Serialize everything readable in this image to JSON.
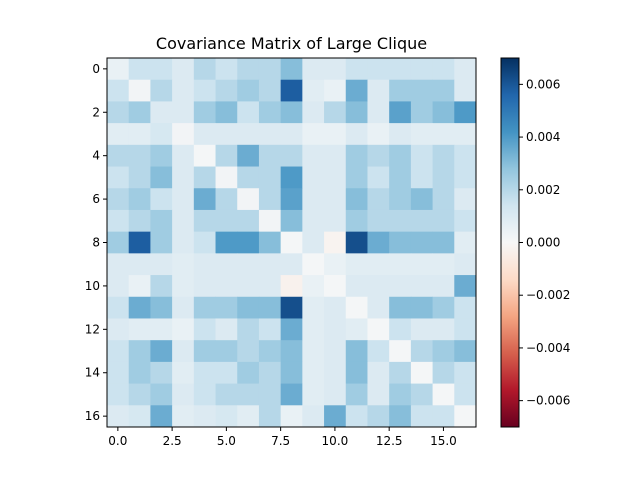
{
  "chart_data": {
    "type": "heatmap",
    "title": "Covariance Matrix of Large Clique",
    "xlabel": "",
    "ylabel": "",
    "x_ticks": [
      "0.0",
      "2.5",
      "5.0",
      "7.5",
      "10.0",
      "12.5",
      "15.0"
    ],
    "x_tick_values": [
      0,
      2.5,
      5,
      7.5,
      10,
      12.5,
      15
    ],
    "y_ticks": [
      "0",
      "2",
      "4",
      "6",
      "8",
      "10",
      "12",
      "14",
      "16"
    ],
    "y_tick_values": [
      0,
      2,
      4,
      6,
      8,
      10,
      12,
      14,
      16
    ],
    "xlim": [
      -0.5,
      16.5
    ],
    "ylim": [
      16.5,
      -0.5
    ],
    "colormap": "RdBu",
    "vmin": -0.007,
    "vmax": 0.007,
    "colorbar_ticks": [
      "0.006",
      "0.004",
      "0.002",
      "0.000",
      "−0.002",
      "−0.004",
      "−0.006"
    ],
    "colorbar_tick_values": [
      0.006,
      0.004,
      0.002,
      0.0,
      -0.002,
      -0.004,
      -0.006
    ],
    "grid": false,
    "matrix": [
      [
        0.0005,
        0.0015,
        0.0015,
        0.001,
        0.002,
        0.0015,
        0.002,
        0.002,
        0.003,
        0.001,
        0.001,
        0.0015,
        0.0015,
        0.0015,
        0.0015,
        0.0015,
        0.001
      ],
      [
        0.0015,
        0.0002,
        0.002,
        0.001,
        0.0015,
        0.002,
        0.0025,
        0.002,
        0.0058,
        0.0008,
        0.0005,
        0.0035,
        0.001,
        0.0025,
        0.0025,
        0.0025,
        0.001
      ],
      [
        0.002,
        0.0025,
        0.001,
        0.001,
        0.0025,
        0.003,
        0.0015,
        0.0025,
        0.003,
        0.001,
        0.002,
        0.003,
        0.001,
        0.0038,
        0.0025,
        0.003,
        0.004
      ],
      [
        0.0008,
        0.0008,
        0.0012,
        0.0002,
        0.001,
        0.001,
        0.001,
        0.001,
        0.001,
        0.0005,
        0.0005,
        0.001,
        0.0005,
        0.001,
        0.0008,
        0.0008,
        0.0008
      ],
      [
        0.002,
        0.002,
        0.0025,
        0.001,
        0.0001,
        0.002,
        0.0035,
        0.002,
        0.002,
        0.001,
        0.001,
        0.0025,
        0.002,
        0.0025,
        0.0015,
        0.002,
        0.0015
      ],
      [
        0.0015,
        0.002,
        0.003,
        0.001,
        0.002,
        0.0002,
        0.002,
        0.002,
        0.004,
        0.001,
        0.001,
        0.0025,
        0.0015,
        0.0025,
        0.0015,
        0.002,
        0.0015
      ],
      [
        0.002,
        0.0025,
        0.0015,
        0.001,
        0.0035,
        0.002,
        0.0002,
        0.002,
        0.0038,
        0.001,
        0.001,
        0.003,
        0.002,
        0.0025,
        0.003,
        0.002,
        0.001
      ],
      [
        0.0015,
        0.002,
        0.0025,
        0.001,
        0.002,
        0.002,
        0.002,
        0.0002,
        0.003,
        0.001,
        0.001,
        0.0025,
        0.002,
        0.002,
        0.002,
        0.002,
        0.0015
      ],
      [
        0.0025,
        0.0058,
        0.0025,
        0.001,
        0.0015,
        0.004,
        0.004,
        0.003,
        0.0001,
        0.001,
        -0.0002,
        0.0062,
        0.0035,
        0.003,
        0.003,
        0.003,
        0.0008
      ],
      [
        0.001,
        0.001,
        0.001,
        0.0008,
        0.001,
        0.001,
        0.001,
        0.001,
        0.001,
        0.0001,
        0.0005,
        0.0008,
        0.0008,
        0.0008,
        0.0008,
        0.0008,
        0.001
      ],
      [
        0.001,
        0.0005,
        0.002,
        0.0008,
        0.001,
        0.001,
        0.001,
        0.001,
        -0.0003,
        0.0005,
        0.0001,
        0.001,
        0.001,
        0.001,
        0.001,
        0.001,
        0.0035
      ],
      [
        0.0015,
        0.0035,
        0.003,
        0.001,
        0.0025,
        0.0025,
        0.003,
        0.003,
        0.0062,
        0.0008,
        0.001,
        0.0001,
        0.001,
        0.003,
        0.003,
        0.0025,
        0.0015
      ],
      [
        0.001,
        0.0008,
        0.0008,
        0.0005,
        0.0015,
        0.001,
        0.002,
        0.0015,
        0.0035,
        0.0008,
        0.001,
        0.0008,
        0.0001,
        0.0015,
        0.001,
        0.001,
        0.0015
      ],
      [
        0.0015,
        0.0025,
        0.0035,
        0.001,
        0.0025,
        0.0025,
        0.002,
        0.0025,
        0.003,
        0.0008,
        0.001,
        0.003,
        0.0015,
        0.0001,
        0.002,
        0.0025,
        0.003
      ],
      [
        0.0015,
        0.0025,
        0.002,
        0.0008,
        0.0015,
        0.0015,
        0.0025,
        0.002,
        0.003,
        0.0008,
        0.001,
        0.003,
        0.001,
        0.002,
        0.0001,
        0.002,
        0.0015
      ],
      [
        0.0015,
        0.002,
        0.0025,
        0.001,
        0.0015,
        0.002,
        0.002,
        0.002,
        0.0035,
        0.0008,
        0.001,
        0.0025,
        0.001,
        0.0025,
        0.002,
        0.0001,
        0.0015
      ],
      [
        0.001,
        0.0012,
        0.0035,
        0.0008,
        0.001,
        0.0012,
        0.0008,
        0.002,
        0.0005,
        0.001,
        0.0035,
        0.0015,
        0.002,
        0.003,
        0.0015,
        0.0015,
        0.0001
      ]
    ]
  }
}
